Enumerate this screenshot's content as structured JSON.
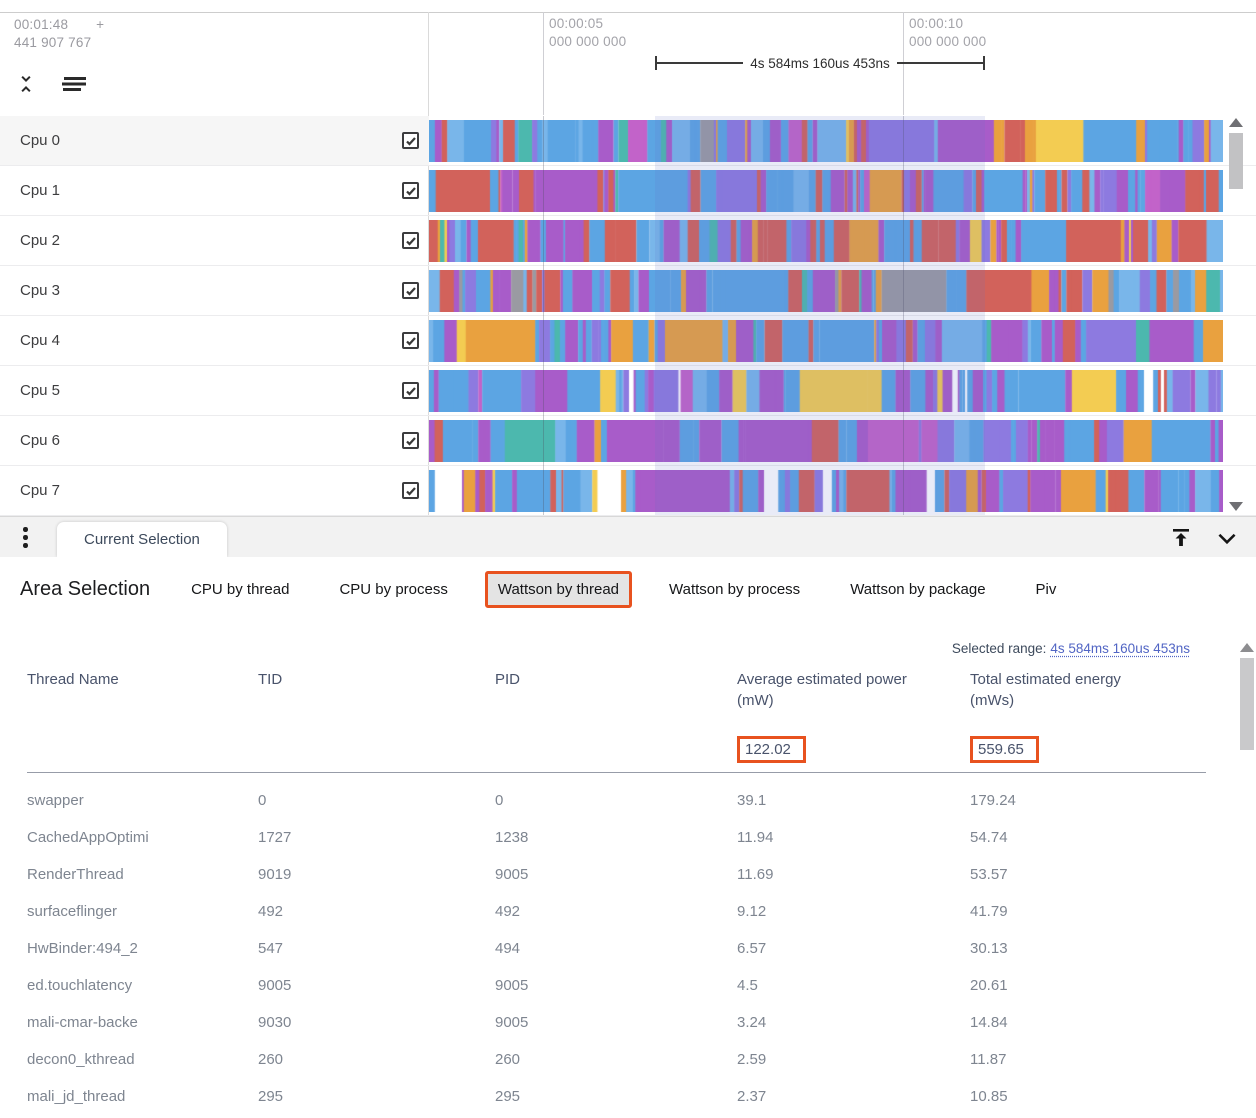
{
  "timeline": {
    "origin_time": "00:01:48",
    "origin_plus": "+",
    "origin_frac": "441 907 767",
    "ticks": [
      {
        "label1": "00:00:05",
        "label2": "000 000 000"
      },
      {
        "label1": "00:00:10",
        "label2": "000 000 000"
      }
    ],
    "span": {
      "label": "4s 584ms 160us 453ns"
    }
  },
  "tracks": {
    "rows": [
      {
        "name": "Cpu 0",
        "checked": true,
        "seed": 101,
        "palette": [
          {
            "c": "#5ca5e3",
            "w": 0.28
          },
          {
            "c": "#79b6ea",
            "w": 0.12
          },
          {
            "c": "#a85cc9",
            "w": 0.16
          },
          {
            "c": "#8d7ae0",
            "w": 0.08
          },
          {
            "c": "#4cb8ae",
            "w": 0.07
          },
          {
            "c": "#e9a13f",
            "w": 0.1
          },
          {
            "c": "#d2625b",
            "w": 0.07
          },
          {
            "c": "#c263c9",
            "w": 0.05
          },
          {
            "c": "#f3cc52",
            "w": 0.03
          },
          {
            "c": "#9a9aa2",
            "w": 0.04
          }
        ]
      },
      {
        "name": "Cpu 1",
        "checked": true,
        "seed": 202,
        "palette": [
          {
            "c": "#d2625b",
            "w": 0.24
          },
          {
            "c": "#5ca5e3",
            "w": 0.28
          },
          {
            "c": "#a85cc9",
            "w": 0.22
          },
          {
            "c": "#79b6ea",
            "w": 0.08
          },
          {
            "c": "#8d7ae0",
            "w": 0.06
          },
          {
            "c": "#e9a13f",
            "w": 0.05
          },
          {
            "c": "#c263c9",
            "w": 0.04
          },
          {
            "c": "#4cb8ae",
            "w": 0.03
          }
        ]
      },
      {
        "name": "Cpu 2",
        "checked": true,
        "seed": 303,
        "palette": [
          {
            "c": "#5ca5e3",
            "w": 0.27
          },
          {
            "c": "#d2625b",
            "w": 0.19
          },
          {
            "c": "#a85cc9",
            "w": 0.25
          },
          {
            "c": "#8d7ae0",
            "w": 0.08
          },
          {
            "c": "#79b6ea",
            "w": 0.09
          },
          {
            "c": "#e9a13f",
            "w": 0.06
          },
          {
            "c": "#4cb8ae",
            "w": 0.03
          },
          {
            "c": "#f3cc52",
            "w": 0.03
          }
        ]
      },
      {
        "name": "Cpu 3",
        "checked": true,
        "seed": 404,
        "palette": [
          {
            "c": "#5ca5e3",
            "w": 0.32
          },
          {
            "c": "#79b6ea",
            "w": 0.1
          },
          {
            "c": "#a85cc9",
            "w": 0.18
          },
          {
            "c": "#d2625b",
            "w": 0.1
          },
          {
            "c": "#9a9aa2",
            "w": 0.1
          },
          {
            "c": "#8d7ae0",
            "w": 0.08
          },
          {
            "c": "#e9a13f",
            "w": 0.06
          },
          {
            "c": "#4cb8ae",
            "w": 0.06
          }
        ]
      },
      {
        "name": "Cpu 4",
        "checked": true,
        "seed": 505,
        "palette": [
          {
            "c": "#5ca5e3",
            "w": 0.38
          },
          {
            "c": "#79b6ea",
            "w": 0.12
          },
          {
            "c": "#a85cc9",
            "w": 0.2
          },
          {
            "c": "#8d7ae0",
            "w": 0.1
          },
          {
            "c": "#d2625b",
            "w": 0.05
          },
          {
            "c": "#e9a13f",
            "w": 0.07
          },
          {
            "c": "#f3cc52",
            "w": 0.04
          },
          {
            "c": "#4cb8ae",
            "w": 0.04
          }
        ]
      },
      {
        "name": "Cpu 5",
        "checked": true,
        "seed": 606,
        "palette": [
          {
            "c": "#a85cc9",
            "w": 0.3
          },
          {
            "c": "#5ca5e3",
            "w": 0.27
          },
          {
            "c": "#8d7ae0",
            "w": 0.1
          },
          {
            "c": "#79b6ea",
            "w": 0.08
          },
          {
            "c": "#ffffff",
            "w": 0.1
          },
          {
            "c": "#f3cc52",
            "w": 0.05
          },
          {
            "c": "#d2625b",
            "w": 0.04
          },
          {
            "c": "#c263c9",
            "w": 0.04
          },
          {
            "c": "#e9a13f",
            "w": 0.02
          }
        ]
      },
      {
        "name": "Cpu 6",
        "checked": true,
        "seed": 707,
        "palette": [
          {
            "c": "#5ca5e3",
            "w": 0.33
          },
          {
            "c": "#a85cc9",
            "w": 0.28
          },
          {
            "c": "#8d7ae0",
            "w": 0.1
          },
          {
            "c": "#79b6ea",
            "w": 0.1
          },
          {
            "c": "#d2625b",
            "w": 0.06
          },
          {
            "c": "#e9a13f",
            "w": 0.05
          },
          {
            "c": "#4cb8ae",
            "w": 0.04
          },
          {
            "c": "#c263c9",
            "w": 0.04
          }
        ]
      },
      {
        "name": "Cpu 7",
        "checked": true,
        "seed": 808,
        "palette": [
          {
            "c": "#a85cc9",
            "w": 0.33
          },
          {
            "c": "#5ca5e3",
            "w": 0.23
          },
          {
            "c": "#ffffff",
            "w": 0.08
          },
          {
            "c": "#d2625b",
            "w": 0.13
          },
          {
            "c": "#8d7ae0",
            "w": 0.08
          },
          {
            "c": "#f3cc52",
            "w": 0.05
          },
          {
            "c": "#e9a13f",
            "w": 0.05
          },
          {
            "c": "#79b6ea",
            "w": 0.05
          }
        ]
      }
    ]
  },
  "panel": {
    "tab_label": "Current Selection"
  },
  "selection_tabs": {
    "title": "Area Selection",
    "tabs": [
      {
        "label": "CPU by thread",
        "selected": false
      },
      {
        "label": "CPU by process",
        "selected": false
      },
      {
        "label": "Wattson by thread",
        "selected": true
      },
      {
        "label": "Wattson by process",
        "selected": false
      },
      {
        "label": "Wattson by package",
        "selected": false
      },
      {
        "label": "Piv",
        "selected": false
      }
    ]
  },
  "table": {
    "selected_range_label": "Selected range:",
    "selected_range_value": "4s 584ms 160us 453ns",
    "columns": [
      "Thread Name",
      "TID",
      "PID",
      "Average estimated power (mW)",
      "Total estimated energy (mWs)"
    ],
    "summary": {
      "avg_power": "122.02",
      "total_energy": "559.65"
    },
    "rows": [
      [
        "swapper",
        "0",
        "0",
        "39.1",
        "179.24"
      ],
      [
        "CachedAppOptimi",
        "1727",
        "1238",
        "11.94",
        "54.74"
      ],
      [
        "RenderThread",
        "9019",
        "9005",
        "11.69",
        "53.57"
      ],
      [
        "surfaceflinger",
        "492",
        "492",
        "9.12",
        "41.79"
      ],
      [
        "HwBinder:494_2",
        "547",
        "494",
        "6.57",
        "30.13"
      ],
      [
        "ed.touchlatency",
        "9005",
        "9005",
        "4.5",
        "20.61"
      ],
      [
        "mali-cmar-backe",
        "9030",
        "9005",
        "3.24",
        "14.84"
      ],
      [
        "decon0_kthread",
        "260",
        "260",
        "2.59",
        "11.87"
      ],
      [
        "mali_jd_thread",
        "295",
        "295",
        "2.37",
        "10.85"
      ]
    ]
  },
  "colors": {
    "accent_orange": "#e8521f",
    "link_blue": "#5165c4"
  }
}
